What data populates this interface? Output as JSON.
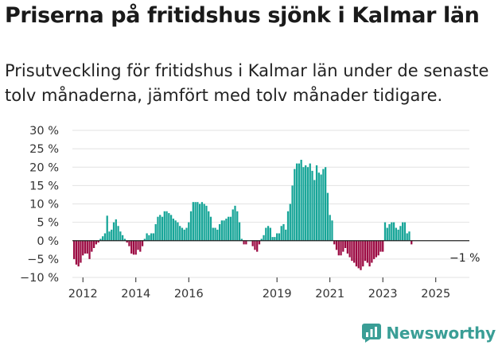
{
  "title": "Priserna på fritidshus sjönk i Kalmar län",
  "subtitle": "Prisutveckling för fritidshus i Kalmar län under de senaste tolv månaderna, jämfört med tolv månader tidigare.",
  "logo_text": "Newsworthy",
  "colors": {
    "positive": "#17a598",
    "negative": "#9c0b43",
    "grid": "#e2e2e2",
    "zero": "#222222",
    "text": "#333333",
    "brand": "#3a9e96"
  },
  "chart_data": {
    "type": "bar",
    "x_start": "2011-09",
    "frequency": "monthly",
    "y_unit": "%",
    "ylim": [
      -10,
      30
    ],
    "yticks": [
      -10,
      -5,
      0,
      5,
      10,
      15,
      20,
      25,
      30
    ],
    "ytick_labels": [
      "−10 %",
      "−5 %",
      "0 %",
      "5 %",
      "10 %",
      "15 %",
      "20 %",
      "25 %",
      "30 %"
    ],
    "xtick_labels": [
      "2012",
      "2014",
      "2016",
      "2019",
      "2021",
      "2023",
      "2025"
    ],
    "xtick_index": [
      4,
      28,
      52,
      92,
      116,
      140,
      164
    ],
    "annotation": "−1 %",
    "values": [
      -5,
      -6.5,
      -7,
      -6,
      -4,
      -3.5,
      -3.5,
      -5,
      -3,
      -2,
      -1,
      -0.5,
      0.5,
      1.2,
      2,
      6.8,
      2.5,
      3,
      5,
      5.8,
      4,
      2.5,
      1.5,
      0.5,
      -0.5,
      -1.5,
      -3.5,
      -3.8,
      -3.8,
      -2.5,
      -3,
      -1.5,
      0.5,
      2,
      1.5,
      2,
      2,
      4.5,
      6.5,
      7,
      6.5,
      8,
      8,
      7.5,
      7,
      6,
      5.5,
      5,
      4,
      3.5,
      3,
      3.5,
      5,
      8,
      10.5,
      10.5,
      10.5,
      10,
      10.5,
      10,
      9.5,
      8,
      6.5,
      3.5,
      3.5,
      3,
      4.5,
      5.5,
      5.5,
      6,
      6.5,
      6.5,
      8.5,
      9.5,
      8,
      5,
      0.5,
      -1,
      -1,
      0,
      0,
      -1.5,
      -2.5,
      -3,
      -1,
      0.5,
      1.5,
      3.5,
      4,
      3.5,
      1,
      1,
      2,
      2,
      4,
      4.5,
      3,
      8,
      10,
      15,
      19.5,
      21,
      21,
      22,
      20,
      20.5,
      20,
      21,
      19,
      16.5,
      20.5,
      18.5,
      18,
      19.5,
      20,
      13,
      7,
      5.5,
      -1,
      -2.5,
      -4,
      -4,
      -3,
      -2,
      -3.5,
      -4.5,
      -5.5,
      -6,
      -7,
      -7.5,
      -8,
      -7,
      -5.5,
      -6,
      -7,
      -6,
      -5,
      -4.5,
      -4,
      -3,
      -3,
      5,
      3.5,
      4.5,
      5,
      5,
      3.5,
      3,
      4,
      5,
      5,
      2,
      2.5,
      -1
    ]
  }
}
